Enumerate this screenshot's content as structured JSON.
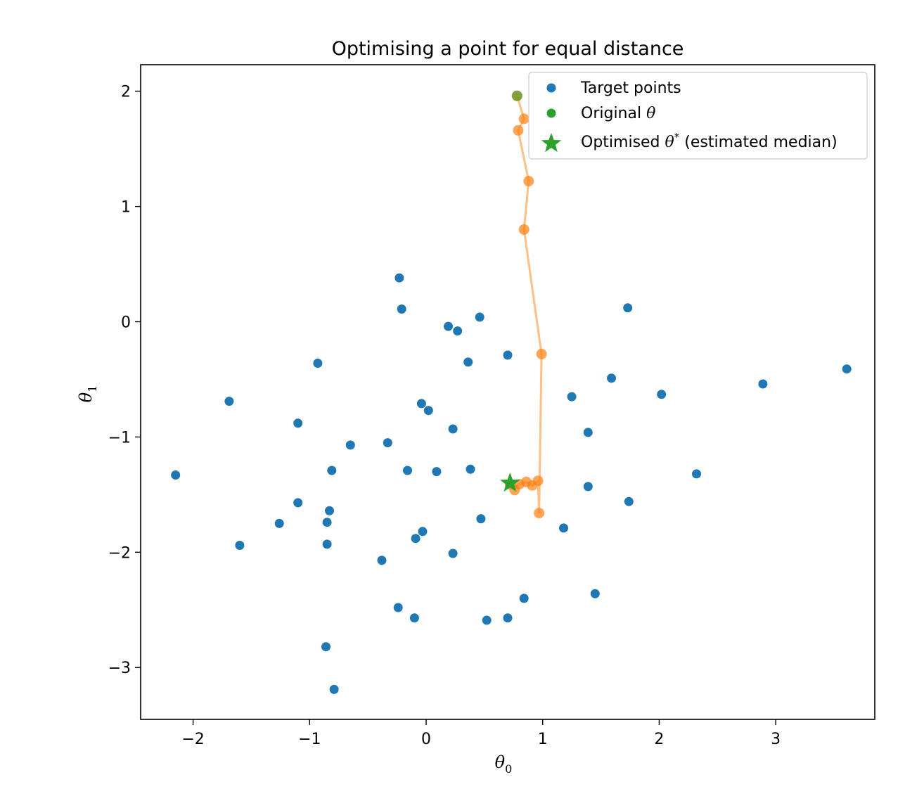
{
  "chart_data": {
    "type": "scatter",
    "title": "Optimising a point for equal distance",
    "xlabel": "θ",
    "xlabel_sub": "0",
    "ylabel": "θ",
    "ylabel_sub": "1",
    "xlim": [
      -2.45,
      3.85
    ],
    "ylim": [
      -3.45,
      2.23
    ],
    "xticks": [
      -2,
      -1,
      0,
      1,
      2,
      3
    ],
    "yticks": [
      -3,
      -2,
      -1,
      0,
      1,
      2
    ],
    "xtick_labels": [
      "−2",
      "−1",
      "0",
      "1",
      "2",
      "3"
    ],
    "ytick_labels": [
      "−3",
      "−2",
      "−1",
      "0",
      "1",
      "2"
    ],
    "grid": false,
    "legend_position": "top-right",
    "colors": {
      "target": "#1f77b4",
      "path": "#ff7f0e",
      "original": "#2ca02c",
      "optimised": "#2ca02c"
    },
    "legend": [
      {
        "marker": "circle",
        "color": "#1f77b4",
        "label": "Target points"
      },
      {
        "marker": "circle",
        "color": "#2ca02c",
        "label": "Original θ"
      },
      {
        "marker": "star",
        "color": "#2ca02c",
        "label": "Optimised θ* (estimated median)"
      }
    ],
    "series": [
      {
        "name": "Target points",
        "points": [
          [
            -0.23,
            0.38
          ],
          [
            -0.21,
            0.11
          ],
          [
            0.19,
            -0.04
          ],
          [
            0.27,
            -0.08
          ],
          [
            0.46,
            0.04
          ],
          [
            -0.93,
            -0.36
          ],
          [
            0.36,
            -0.35
          ],
          [
            0.7,
            -0.29
          ],
          [
            1.73,
            0.12
          ],
          [
            1.59,
            -0.49
          ],
          [
            3.61,
            -0.41
          ],
          [
            2.89,
            -0.54
          ],
          [
            2.02,
            -0.63
          ],
          [
            1.25,
            -0.65
          ],
          [
            -1.69,
            -0.69
          ],
          [
            -0.04,
            -0.71
          ],
          [
            0.02,
            -0.77
          ],
          [
            -1.1,
            -0.88
          ],
          [
            0.23,
            -0.93
          ],
          [
            1.39,
            -0.96
          ],
          [
            -0.65,
            -1.07
          ],
          [
            -0.33,
            -1.05
          ],
          [
            -2.15,
            -1.33
          ],
          [
            -0.81,
            -1.29
          ],
          [
            -0.16,
            -1.29
          ],
          [
            0.09,
            -1.3
          ],
          [
            0.38,
            -1.28
          ],
          [
            2.32,
            -1.32
          ],
          [
            1.39,
            -1.43
          ],
          [
            1.74,
            -1.56
          ],
          [
            -1.1,
            -1.57
          ],
          [
            -0.83,
            -1.64
          ],
          [
            -0.85,
            -1.74
          ],
          [
            -1.26,
            -1.75
          ],
          [
            0.47,
            -1.71
          ],
          [
            1.18,
            -1.79
          ],
          [
            -0.03,
            -1.82
          ],
          [
            -0.09,
            -1.88
          ],
          [
            -0.85,
            -1.93
          ],
          [
            -1.6,
            -1.94
          ],
          [
            0.23,
            -2.01
          ],
          [
            -0.38,
            -2.07
          ],
          [
            -0.24,
            -2.48
          ],
          [
            -0.1,
            -2.57
          ],
          [
            0.52,
            -2.59
          ],
          [
            0.7,
            -2.57
          ],
          [
            0.84,
            -2.4
          ],
          [
            1.45,
            -2.36
          ],
          [
            -0.86,
            -2.82
          ],
          [
            -0.79,
            -3.19
          ]
        ]
      },
      {
        "name": "Optimisation path",
        "points": [
          [
            0.78,
            1.96
          ],
          [
            0.84,
            1.76
          ],
          [
            0.79,
            1.66
          ],
          [
            0.88,
            1.22
          ],
          [
            0.84,
            0.8
          ],
          [
            0.99,
            -0.28
          ],
          [
            0.97,
            -1.66
          ],
          [
            0.96,
            -1.38
          ],
          [
            0.91,
            -1.42
          ],
          [
            0.86,
            -1.39
          ],
          [
            0.8,
            -1.41
          ],
          [
            0.76,
            -1.46
          ],
          [
            0.72,
            -1.41
          ]
        ]
      },
      {
        "name": "Original θ",
        "points": [
          [
            0.78,
            1.96
          ]
        ]
      },
      {
        "name": "Optimised θ* (estimated median)",
        "points": [
          [
            0.72,
            -1.4
          ]
        ]
      }
    ]
  }
}
